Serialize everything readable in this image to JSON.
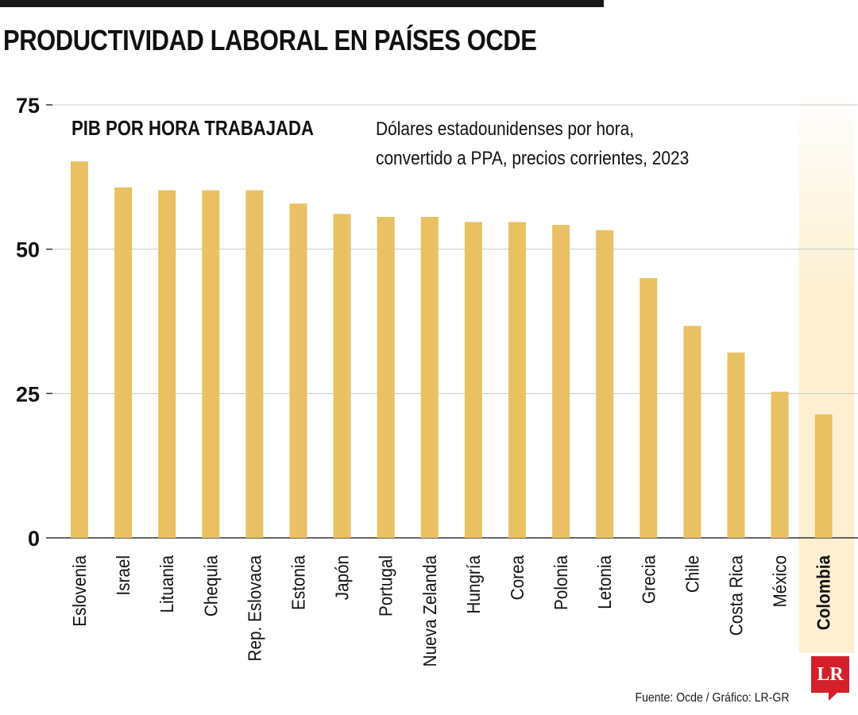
{
  "header": {
    "title": "PRODUCTIVIDAD LABORAL EN PAÍSES OCDE"
  },
  "chart_data": {
    "type": "bar",
    "subtitle": "PIB POR HORA TRABAJADA",
    "unit_note": [
      "Dólares estadounidenses por hora,",
      "convertido a PPA, precios corrientes, 2023"
    ],
    "categories": [
      "Eslovenia",
      "Israel",
      "Lituania",
      "Chequia",
      "Rep. Eslovaca",
      "Estonia",
      "Japón",
      "Portugal",
      "Nueva Zelanda",
      "Hungría",
      "Corea",
      "Polonia",
      "Letonia",
      "Grecia",
      "Chile",
      "Costa Rica",
      "México",
      "Colombia"
    ],
    "values": [
      65.2,
      60.7,
      60.2,
      60.2,
      60.2,
      57.9,
      56.1,
      55.6,
      55.6,
      54.7,
      54.7,
      54.2,
      53.3,
      45.0,
      36.7,
      32.1,
      25.3,
      21.4
    ],
    "highlight": "Colombia",
    "ylim": [
      0,
      75
    ],
    "yticks": [
      0,
      25,
      50,
      75
    ],
    "grid": true,
    "colors": {
      "bar": "#e9c163",
      "highlight_band": "#fdf0d2",
      "gridline": "#c8c8c8",
      "axis": "#333333"
    }
  },
  "footer": {
    "source": "Fuente: Ocde / Gráfico: LR-GR",
    "logo_text": "LR"
  }
}
